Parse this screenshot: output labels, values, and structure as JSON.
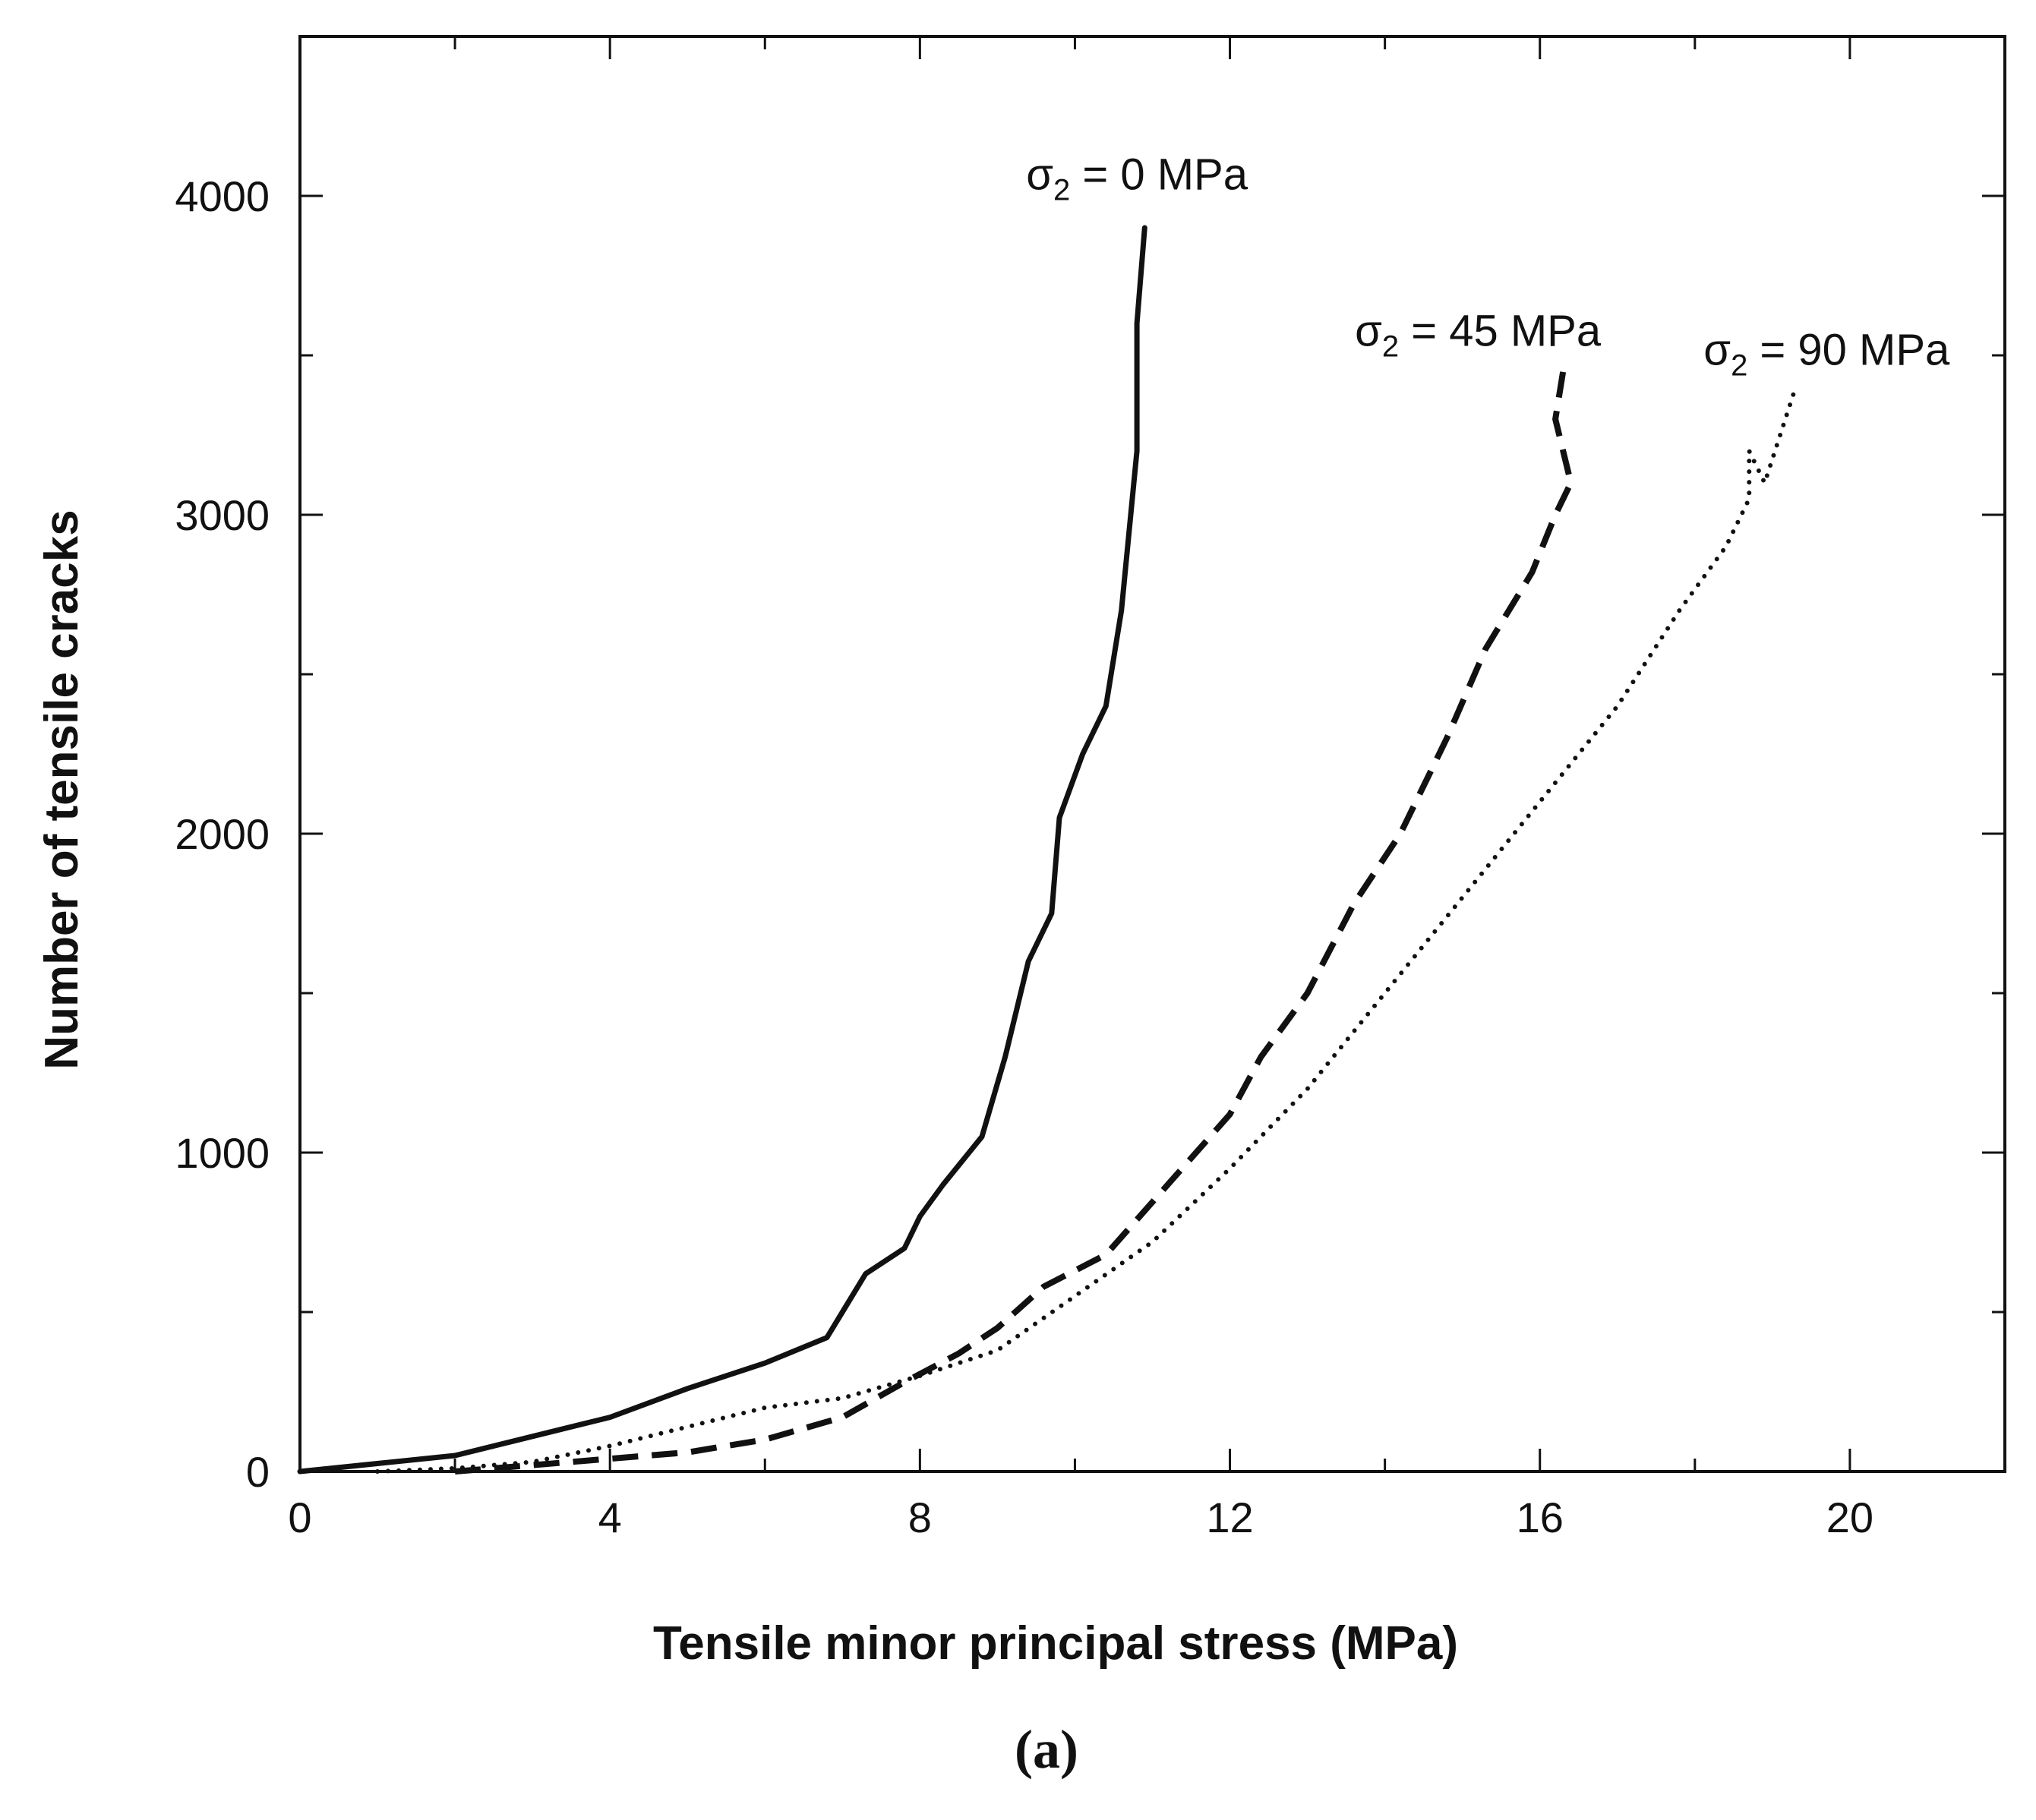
{
  "chart_data": {
    "type": "line",
    "title": "",
    "caption": "(a)",
    "xlabel": "Tensile minor principal stress (MPa)",
    "ylabel": "Number of tensile cracks",
    "xlim": [
      0,
      22
    ],
    "ylim": [
      0,
      4500
    ],
    "x_ticks": [
      0,
      4,
      8,
      12,
      16,
      20
    ],
    "x_tick_labels": [
      "0",
      "4",
      "8",
      "12",
      "16",
      "20"
    ],
    "y_ticks": [
      0,
      1000,
      2000,
      3000,
      4000
    ],
    "y_tick_labels": [
      "0",
      "1000",
      "2000",
      "3000",
      "4000"
    ],
    "x_minor_step": 2,
    "y_minor_step": 500,
    "grid": false,
    "colors": {
      "line": "#111111",
      "axis": "#111111"
    },
    "series": [
      {
        "name": "σ2 = 0 MPa",
        "label_symbol": "σ",
        "label_sub": "2",
        "label_rest": " = 0 MPa",
        "label_at": [
          10.8,
          4020
        ],
        "style": "solid",
        "x": [
          0,
          1,
          2,
          3,
          4,
          5,
          6,
          6.8,
          7,
          7.3,
          7.8,
          8.0,
          8.3,
          8.8,
          9.1,
          9.4,
          9.7,
          9.8,
          10.1,
          10.4,
          10.6,
          10.7,
          10.8,
          10.8,
          10.9
        ],
        "y": [
          0,
          25,
          50,
          110,
          170,
          260,
          340,
          420,
          500,
          620,
          700,
          800,
          900,
          1050,
          1300,
          1600,
          1750,
          2050,
          2250,
          2400,
          2700,
          2950,
          3200,
          3600,
          3900
        ]
      },
      {
        "name": "σ2 = 45 MPa",
        "label_symbol": "σ",
        "label_sub": "2",
        "label_rest": " = 45 MPa",
        "label_at": [
          15.2,
          3530
        ],
        "style": "dashed",
        "x": [
          2,
          3,
          4,
          5,
          6,
          7,
          7.8,
          8.5,
          9.0,
          9.6,
          10.4,
          11.2,
          12.0,
          12.4,
          13.0,
          13.6,
          14.2,
          14.8,
          15.3,
          15.9,
          16.2,
          16.4,
          16.2,
          16.3
        ],
        "y": [
          0,
          20,
          40,
          60,
          100,
          170,
          280,
          370,
          450,
          580,
          680,
          900,
          1120,
          1300,
          1500,
          1780,
          2000,
          2300,
          2580,
          2820,
          3000,
          3100,
          3300,
          3450
        ]
      },
      {
        "name": "σ2 = 90 MPa",
        "label_symbol": "σ",
        "label_sub": "2",
        "label_rest": " = 90 MPa",
        "label_at": [
          19.7,
          3470
        ],
        "style": "dotted",
        "x": [
          1,
          2,
          3,
          4,
          5,
          6,
          7,
          8,
          9,
          10,
          11,
          12,
          13,
          14,
          15,
          16,
          17,
          17.8,
          18.4,
          18.7,
          18.7,
          18.9,
          19.3
        ],
        "y": [
          0,
          10,
          30,
          80,
          140,
          200,
          230,
          300,
          380,
          550,
          720,
          950,
          1200,
          1500,
          1800,
          2100,
          2400,
          2700,
          2900,
          3050,
          3200,
          3100,
          3400
        ]
      }
    ]
  }
}
